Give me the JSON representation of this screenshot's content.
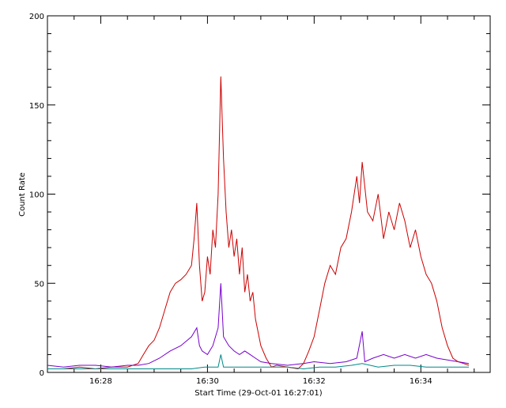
{
  "chart_data": {
    "type": "line",
    "xlabel": "Start Time (29-Oct-01 16:27:01)",
    "ylabel": "Count Rate",
    "xlim": [
      27.0,
      35.3
    ],
    "ylim": [
      0,
      200
    ],
    "x_ticks": [
      {
        "value": 28,
        "label": "16:28"
      },
      {
        "value": 30,
        "label": "16:30"
      },
      {
        "value": 32,
        "label": "16:32"
      },
      {
        "value": 34,
        "label": "16:34"
      }
    ],
    "y_ticks": [
      {
        "value": 0,
        "label": "0"
      },
      {
        "value": 50,
        "label": "50"
      },
      {
        "value": 100,
        "label": "100"
      },
      {
        "value": 150,
        "label": "150"
      },
      {
        "value": 200,
        "label": "200"
      }
    ],
    "grid": false,
    "series": [
      {
        "color": "#cc0000",
        "points": [
          [
            27.0,
            2
          ],
          [
            27.3,
            2
          ],
          [
            27.6,
            3
          ],
          [
            27.9,
            2
          ],
          [
            28.2,
            3
          ],
          [
            28.5,
            3
          ],
          [
            28.7,
            5
          ],
          [
            28.8,
            10
          ],
          [
            28.9,
            15
          ],
          [
            29.0,
            18
          ],
          [
            29.1,
            25
          ],
          [
            29.2,
            35
          ],
          [
            29.3,
            45
          ],
          [
            29.4,
            50
          ],
          [
            29.5,
            52
          ],
          [
            29.6,
            55
          ],
          [
            29.7,
            60
          ],
          [
            29.75,
            75
          ],
          [
            29.8,
            95
          ],
          [
            29.85,
            60
          ],
          [
            29.9,
            40
          ],
          [
            29.95,
            45
          ],
          [
            30.0,
            65
          ],
          [
            30.05,
            55
          ],
          [
            30.1,
            80
          ],
          [
            30.15,
            70
          ],
          [
            30.2,
            100
          ],
          [
            30.25,
            166
          ],
          [
            30.3,
            120
          ],
          [
            30.35,
            90
          ],
          [
            30.4,
            70
          ],
          [
            30.45,
            80
          ],
          [
            30.5,
            65
          ],
          [
            30.55,
            75
          ],
          [
            30.6,
            55
          ],
          [
            30.65,
            70
          ],
          [
            30.7,
            45
          ],
          [
            30.75,
            55
          ],
          [
            30.8,
            40
          ],
          [
            30.85,
            45
          ],
          [
            30.9,
            30
          ],
          [
            31.0,
            15
          ],
          [
            31.1,
            8
          ],
          [
            31.2,
            3
          ],
          [
            31.3,
            4
          ],
          [
            31.5,
            3
          ],
          [
            31.7,
            2
          ],
          [
            31.8,
            5
          ],
          [
            31.9,
            12
          ],
          [
            32.0,
            20
          ],
          [
            32.1,
            35
          ],
          [
            32.2,
            50
          ],
          [
            32.3,
            60
          ],
          [
            32.4,
            55
          ],
          [
            32.5,
            70
          ],
          [
            32.6,
            75
          ],
          [
            32.7,
            90
          ],
          [
            32.8,
            110
          ],
          [
            32.85,
            95
          ],
          [
            32.9,
            118
          ],
          [
            33.0,
            90
          ],
          [
            33.1,
            85
          ],
          [
            33.2,
            100
          ],
          [
            33.3,
            75
          ],
          [
            33.4,
            90
          ],
          [
            33.5,
            80
          ],
          [
            33.6,
            95
          ],
          [
            33.7,
            85
          ],
          [
            33.8,
            70
          ],
          [
            33.9,
            80
          ],
          [
            34.0,
            65
          ],
          [
            34.1,
            55
          ],
          [
            34.2,
            50
          ],
          [
            34.3,
            40
          ],
          [
            34.4,
            25
          ],
          [
            34.5,
            15
          ],
          [
            34.6,
            8
          ],
          [
            34.7,
            6
          ],
          [
            34.8,
            5
          ],
          [
            34.9,
            4
          ]
        ]
      },
      {
        "color": "#7700cc",
        "points": [
          [
            27.0,
            4
          ],
          [
            27.3,
            3
          ],
          [
            27.6,
            4
          ],
          [
            27.9,
            4
          ],
          [
            28.2,
            3
          ],
          [
            28.5,
            4
          ],
          [
            28.7,
            4
          ],
          [
            28.9,
            5
          ],
          [
            29.1,
            8
          ],
          [
            29.3,
            12
          ],
          [
            29.5,
            15
          ],
          [
            29.7,
            20
          ],
          [
            29.8,
            25
          ],
          [
            29.85,
            15
          ],
          [
            29.9,
            12
          ],
          [
            30.0,
            10
          ],
          [
            30.1,
            15
          ],
          [
            30.2,
            25
          ],
          [
            30.25,
            50
          ],
          [
            30.3,
            20
          ],
          [
            30.4,
            15
          ],
          [
            30.5,
            12
          ],
          [
            30.6,
            10
          ],
          [
            30.7,
            12
          ],
          [
            30.8,
            10
          ],
          [
            30.9,
            8
          ],
          [
            31.0,
            6
          ],
          [
            31.2,
            5
          ],
          [
            31.5,
            4
          ],
          [
            31.8,
            5
          ],
          [
            32.0,
            6
          ],
          [
            32.3,
            5
          ],
          [
            32.6,
            6
          ],
          [
            32.8,
            8
          ],
          [
            32.9,
            23
          ],
          [
            32.95,
            6
          ],
          [
            33.1,
            8
          ],
          [
            33.3,
            10
          ],
          [
            33.5,
            8
          ],
          [
            33.7,
            10
          ],
          [
            33.9,
            8
          ],
          [
            34.1,
            10
          ],
          [
            34.3,
            8
          ],
          [
            34.5,
            7
          ],
          [
            34.7,
            6
          ],
          [
            34.9,
            5
          ]
        ]
      },
      {
        "color": "#008888",
        "points": [
          [
            27.0,
            2
          ],
          [
            27.3,
            2
          ],
          [
            27.6,
            2
          ],
          [
            27.9,
            2
          ],
          [
            28.2,
            2
          ],
          [
            28.5,
            2
          ],
          [
            28.8,
            2
          ],
          [
            29.1,
            2
          ],
          [
            29.4,
            2
          ],
          [
            29.7,
            2
          ],
          [
            29.95,
            3
          ],
          [
            30.2,
            3
          ],
          [
            30.25,
            10
          ],
          [
            30.3,
            3
          ],
          [
            30.6,
            3
          ],
          [
            30.9,
            3
          ],
          [
            31.2,
            3
          ],
          [
            31.5,
            3
          ],
          [
            31.8,
            2
          ],
          [
            32.1,
            3
          ],
          [
            32.4,
            3
          ],
          [
            32.7,
            4
          ],
          [
            32.9,
            5
          ],
          [
            33.2,
            3
          ],
          [
            33.5,
            4
          ],
          [
            33.8,
            4
          ],
          [
            34.1,
            3
          ],
          [
            34.4,
            3
          ],
          [
            34.7,
            3
          ],
          [
            34.9,
            3
          ]
        ]
      }
    ]
  }
}
